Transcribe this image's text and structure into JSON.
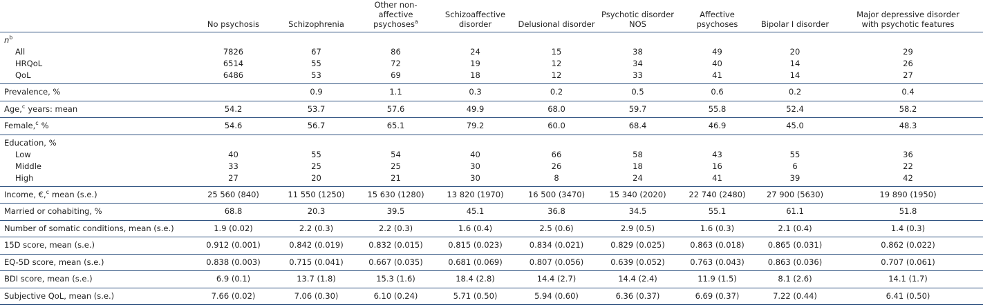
{
  "table": {
    "columns": [
      {
        "text": "No psychosis"
      },
      {
        "text": "Schizophrenia"
      },
      {
        "text": "Other non-affective psychoses",
        "sup": "a"
      },
      {
        "text": "Schizoaffective disorder"
      },
      {
        "text": "Delusional disorder"
      },
      {
        "text": "Psychotic disorder NOS"
      },
      {
        "text": "Affective psychoses"
      },
      {
        "text": "Bipolar I disorder"
      },
      {
        "text": "Major depressive disorder with psychotic features"
      }
    ],
    "sections": [
      {
        "label": {
          "text": "n",
          "sup": "b",
          "italic": true
        },
        "rows": [
          {
            "label": "All",
            "values": [
              "7826",
              "67",
              "86",
              "24",
              "15",
              "38",
              "49",
              "20",
              "29"
            ]
          },
          {
            "label": "HRQoL",
            "values": [
              "6514",
              "55",
              "72",
              "19",
              "12",
              "34",
              "40",
              "14",
              "26"
            ]
          },
          {
            "label": "QoL",
            "values": [
              "6486",
              "53",
              "69",
              "18",
              "12",
              "33",
              "41",
              "14",
              "27"
            ]
          }
        ]
      },
      {
        "label": {
          "text": "Prevalence, %"
        },
        "values": [
          null,
          "0.9",
          "1.1",
          "0.3",
          "0.2",
          "0.5",
          "0.6",
          "0.2",
          "0.4"
        ]
      },
      {
        "label": {
          "text": "Age,",
          "sup": "c",
          "post": "years: mean"
        },
        "values": [
          "54.2",
          "53.7",
          "57.6",
          "49.9",
          "68.0",
          "59.7",
          "55.8",
          "52.4",
          "58.2"
        ]
      },
      {
        "label": {
          "text": "Female,",
          "sup": "c",
          "post": "%"
        },
        "values": [
          "54.6",
          "56.7",
          "65.1",
          "79.2",
          "60.0",
          "68.4",
          "46.9",
          "45.0",
          "48.3"
        ]
      },
      {
        "label": {
          "text": "Education, %"
        },
        "rows": [
          {
            "label": "Low",
            "values": [
              "40",
              "55",
              "54",
              "40",
              "66",
              "58",
              "43",
              "55",
              "36"
            ]
          },
          {
            "label": "Middle",
            "values": [
              "33",
              "25",
              "25",
              "30",
              "26",
              "18",
              "16",
              "6",
              "22"
            ]
          },
          {
            "label": "High",
            "values": [
              "27",
              "20",
              "21",
              "30",
              "8",
              "24",
              "41",
              "39",
              "42"
            ]
          }
        ]
      },
      {
        "label": {
          "text": "Income, €,",
          "sup": "c",
          "post": "mean (s.e.)"
        },
        "values": [
          "25 560 (840)",
          "11 550 (1250)",
          "15 630 (1280)",
          "13 820 (1970)",
          "16 500 (3470)",
          "15 340 (2020)",
          "22 740 (2480)",
          "27 900 (5630)",
          "19 890 (1950)"
        ]
      },
      {
        "label": {
          "text": "Married or cohabiting, %"
        },
        "values": [
          "68.8",
          "20.3",
          "39.5",
          "45.1",
          "36.8",
          "34.5",
          "55.1",
          "61.1",
          "51.8"
        ]
      },
      {
        "label": {
          "text": "Number of somatic conditions, mean (s.e.)"
        },
        "values": [
          "1.9 (0.02)",
          "2.2 (0.3)",
          "2.2 (0.3)",
          "1.6 (0.4)",
          "2.5 (0.6)",
          "2.9 (0.5)",
          "1.6 (0.3)",
          "2.1 (0.4)",
          "1.4 (0.3)"
        ]
      },
      {
        "label": {
          "text": "15D score, mean (s.e.)"
        },
        "values": [
          "0.912 (0.001)",
          "0.842 (0.019)",
          "0.832 (0.015)",
          "0.815 (0.023)",
          "0.834 (0.021)",
          "0.829 (0.025)",
          "0.863 (0.018)",
          "0.865 (0.031)",
          "0.862 (0.022)"
        ]
      },
      {
        "label": {
          "text": "EQ-5D score, mean (s.e.)"
        },
        "values": [
          "0.838 (0.003)",
          "0.715 (0.041)",
          "0.667 (0.035)",
          "0.681 (0.069)",
          "0.807 (0.056)",
          "0.639 (0.052)",
          "0.763 (0.043)",
          "0.863 (0.036)",
          "0.707 (0.061)"
        ]
      },
      {
        "label": {
          "text": "BDI score, mean (s.e.)"
        },
        "values": [
          "6.9 (0.1)",
          "13.7 (1.8)",
          "15.3 (1.6)",
          "18.4 (2.8)",
          "14.4 (2.7)",
          "14.4 (2.4)",
          "11.9 (1.5)",
          "8.1 (2.6)",
          "14.1 (1.7)"
        ]
      },
      {
        "label": {
          "text": "Subjective QoL, mean (s.e.)"
        },
        "values": [
          "7.66 (0.02)",
          "7.06 (0.30)",
          "6.10 (0.24)",
          "5.71 (0.50)",
          "5.94 (0.60)",
          "6.36 (0.37)",
          "6.69 (0.37)",
          "7.22 (0.44)",
          "6.41 (0.50)"
        ]
      }
    ]
  }
}
